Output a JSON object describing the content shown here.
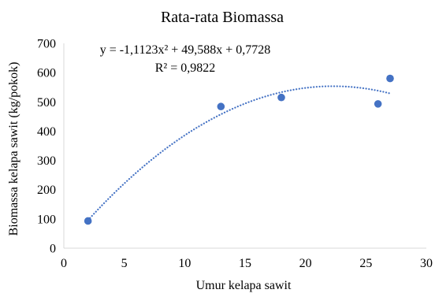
{
  "chart_data": {
    "type": "scatter",
    "title": "Rata-rata Biomassa",
    "xlabel": "Umur kelapa sawit",
    "ylabel": "Biomassa kelapa sawit (kg/pokok)",
    "xlim": [
      0,
      30
    ],
    "ylim": [
      0,
      700
    ],
    "xticks": [
      0,
      5,
      10,
      15,
      20,
      25,
      30
    ],
    "yticks": [
      0,
      100,
      200,
      300,
      400,
      500,
      600,
      700
    ],
    "x_tick_labels": [
      "0",
      "5",
      "10",
      "15",
      "20",
      "25",
      "30"
    ],
    "y_tick_labels": [
      "0",
      "100",
      "200",
      "300",
      "400",
      "500",
      "600",
      "700"
    ],
    "grid": false,
    "legend": "none",
    "series": [
      {
        "points": [
          {
            "x": 2,
            "y": 93
          },
          {
            "x": 13,
            "y": 484
          },
          {
            "x": 18,
            "y": 515
          },
          {
            "x": 26,
            "y": 493
          },
          {
            "x": 27,
            "y": 580
          }
        ],
        "color": "#4472c4"
      }
    ],
    "trendline": {
      "type": "polynomial",
      "order": 2,
      "coefficients": {
        "a": -1.1123,
        "b": 49.588,
        "c": 0.7728
      },
      "x_range": [
        2,
        27
      ],
      "style": "dotted",
      "color": "#4472c4",
      "equation": "y = -1,1123x² + 49,588x + 0,7728",
      "r_squared": "R² = 0,9822"
    }
  }
}
